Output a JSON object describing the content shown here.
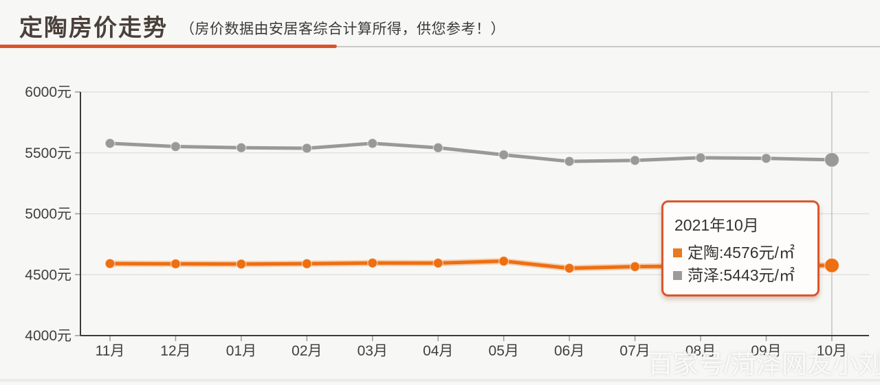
{
  "header": {
    "title": "定陶房价走势",
    "subtitle": "（房价数据由安居客综合计算所得，供您参考！）"
  },
  "colors": {
    "accent_underline": "#dd5229",
    "dingtao": "#ed6f12",
    "heze": "#999999",
    "dingtao_marker": "#e8791f",
    "heze_marker": "#9b9b9b",
    "tooltip_border": "#d8572a",
    "axis": "#3b3b3b",
    "grid": "#dcdcdc",
    "crosshair": "#aaaaaa",
    "axis_text": "#3f3f3f"
  },
  "chart_data": {
    "type": "line",
    "title": "定陶房价走势",
    "x": [
      "11月",
      "12月",
      "01月",
      "02月",
      "03月",
      "04月",
      "05月",
      "06月",
      "07月",
      "08月",
      "09月",
      "10月"
    ],
    "series": [
      {
        "name": "定陶",
        "color": "#ed6f12",
        "values": [
          4591,
          4589,
          4587,
          4590,
          4596,
          4595,
          4611,
          4553,
          4566,
          4570,
          4573,
          4576
        ]
      },
      {
        "name": "菏泽",
        "color": "#999999",
        "values": [
          5578,
          5552,
          5542,
          5538,
          5578,
          5542,
          5484,
          5430,
          5438,
          5460,
          5455,
          5443
        ]
      }
    ],
    "y_ticks": [
      {
        "label": "6000元",
        "value": 6000
      },
      {
        "label": "5500元",
        "value": 5500
      },
      {
        "label": "5000元",
        "value": 5000
      },
      {
        "label": "4500元",
        "value": 4500
      },
      {
        "label": "4000元",
        "value": 4000
      }
    ],
    "ylim": [
      4000,
      6000
    ],
    "grid": true,
    "legend_position": "tooltip-only",
    "highlight_index": 11,
    "highlight_label": "10月"
  },
  "tooltip": {
    "title": "2021年10月",
    "rows": [
      {
        "name": "定陶",
        "text": "定陶:4576元/㎡",
        "color": "#e8791f"
      },
      {
        "name": "菏泽",
        "text": "菏泽:5443元/㎡",
        "color": "#9b9b9b"
      }
    ]
  },
  "watermark": "百家号/菏泽网友小刘"
}
